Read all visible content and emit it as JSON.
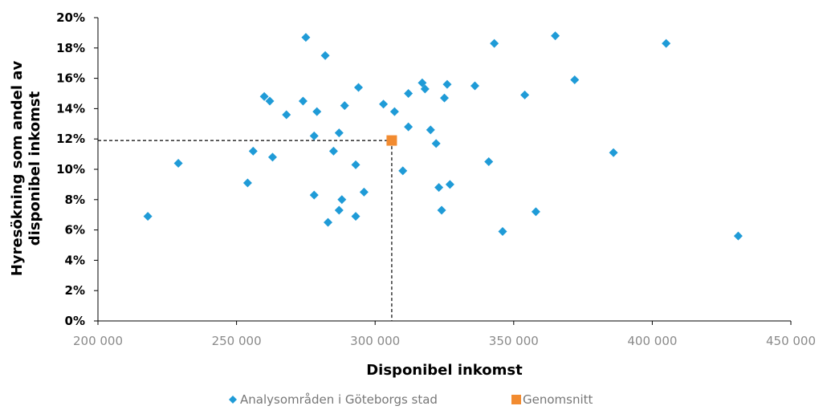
{
  "chart_data": {
    "type": "scatter",
    "xlabel": "Disponibel inkomst",
    "ylabel_lines": [
      "Hyresökning som andel av",
      "disponibel inkomst"
    ],
    "xlim": [
      200000,
      450000
    ],
    "ylim": [
      0,
      0.2
    ],
    "x_ticks": [
      200000,
      250000,
      300000,
      350000,
      400000,
      450000
    ],
    "x_tick_labels": [
      "200 000",
      "250 000",
      "300 000",
      "350 000",
      "400 000",
      "450 000"
    ],
    "y_ticks": [
      0,
      0.02,
      0.04,
      0.06,
      0.08,
      0.1,
      0.12,
      0.14,
      0.16,
      0.18,
      0.2
    ],
    "y_tick_labels": [
      "0%",
      "2%",
      "4%",
      "6%",
      "8%",
      "10%",
      "12%",
      "14%",
      "16%",
      "18%",
      "20%"
    ],
    "grid": false,
    "legend_position": "bottom",
    "reference_lines": {
      "x": 306000,
      "y": 0.119,
      "style": "dashed"
    },
    "series": [
      {
        "name": "Analysområden i Göteborgs stad",
        "marker": "diamond",
        "color": "#1F9BD7",
        "points": [
          [
            218000,
            0.069
          ],
          [
            229000,
            0.104
          ],
          [
            254000,
            0.091
          ],
          [
            256000,
            0.112
          ],
          [
            260000,
            0.148
          ],
          [
            262000,
            0.145
          ],
          [
            263000,
            0.108
          ],
          [
            268000,
            0.136
          ],
          [
            274000,
            0.145
          ],
          [
            275000,
            0.187
          ],
          [
            278000,
            0.122
          ],
          [
            278000,
            0.083
          ],
          [
            279000,
            0.138
          ],
          [
            282000,
            0.175
          ],
          [
            283000,
            0.065
          ],
          [
            285000,
            0.112
          ],
          [
            287000,
            0.124
          ],
          [
            287000,
            0.073
          ],
          [
            288000,
            0.08
          ],
          [
            289000,
            0.142
          ],
          [
            293000,
            0.103
          ],
          [
            293000,
            0.069
          ],
          [
            294000,
            0.154
          ],
          [
            296000,
            0.085
          ],
          [
            303000,
            0.143
          ],
          [
            307000,
            0.138
          ],
          [
            310000,
            0.099
          ],
          [
            312000,
            0.15
          ],
          [
            312000,
            0.128
          ],
          [
            317000,
            0.157
          ],
          [
            318000,
            0.153
          ],
          [
            320000,
            0.126
          ],
          [
            322000,
            0.117
          ],
          [
            323000,
            0.088
          ],
          [
            324000,
            0.073
          ],
          [
            325000,
            0.147
          ],
          [
            326000,
            0.156
          ],
          [
            327000,
            0.09
          ],
          [
            336000,
            0.155
          ],
          [
            341000,
            0.105
          ],
          [
            343000,
            0.183
          ],
          [
            346000,
            0.059
          ],
          [
            354000,
            0.149
          ],
          [
            358000,
            0.072
          ],
          [
            365000,
            0.188
          ],
          [
            372000,
            0.159
          ],
          [
            386000,
            0.111
          ],
          [
            405000,
            0.183
          ],
          [
            431000,
            0.056
          ]
        ]
      },
      {
        "name": "Genomsnitt",
        "marker": "square",
        "color": "#F28B30",
        "points": [
          [
            306000,
            0.119
          ]
        ]
      }
    ]
  }
}
